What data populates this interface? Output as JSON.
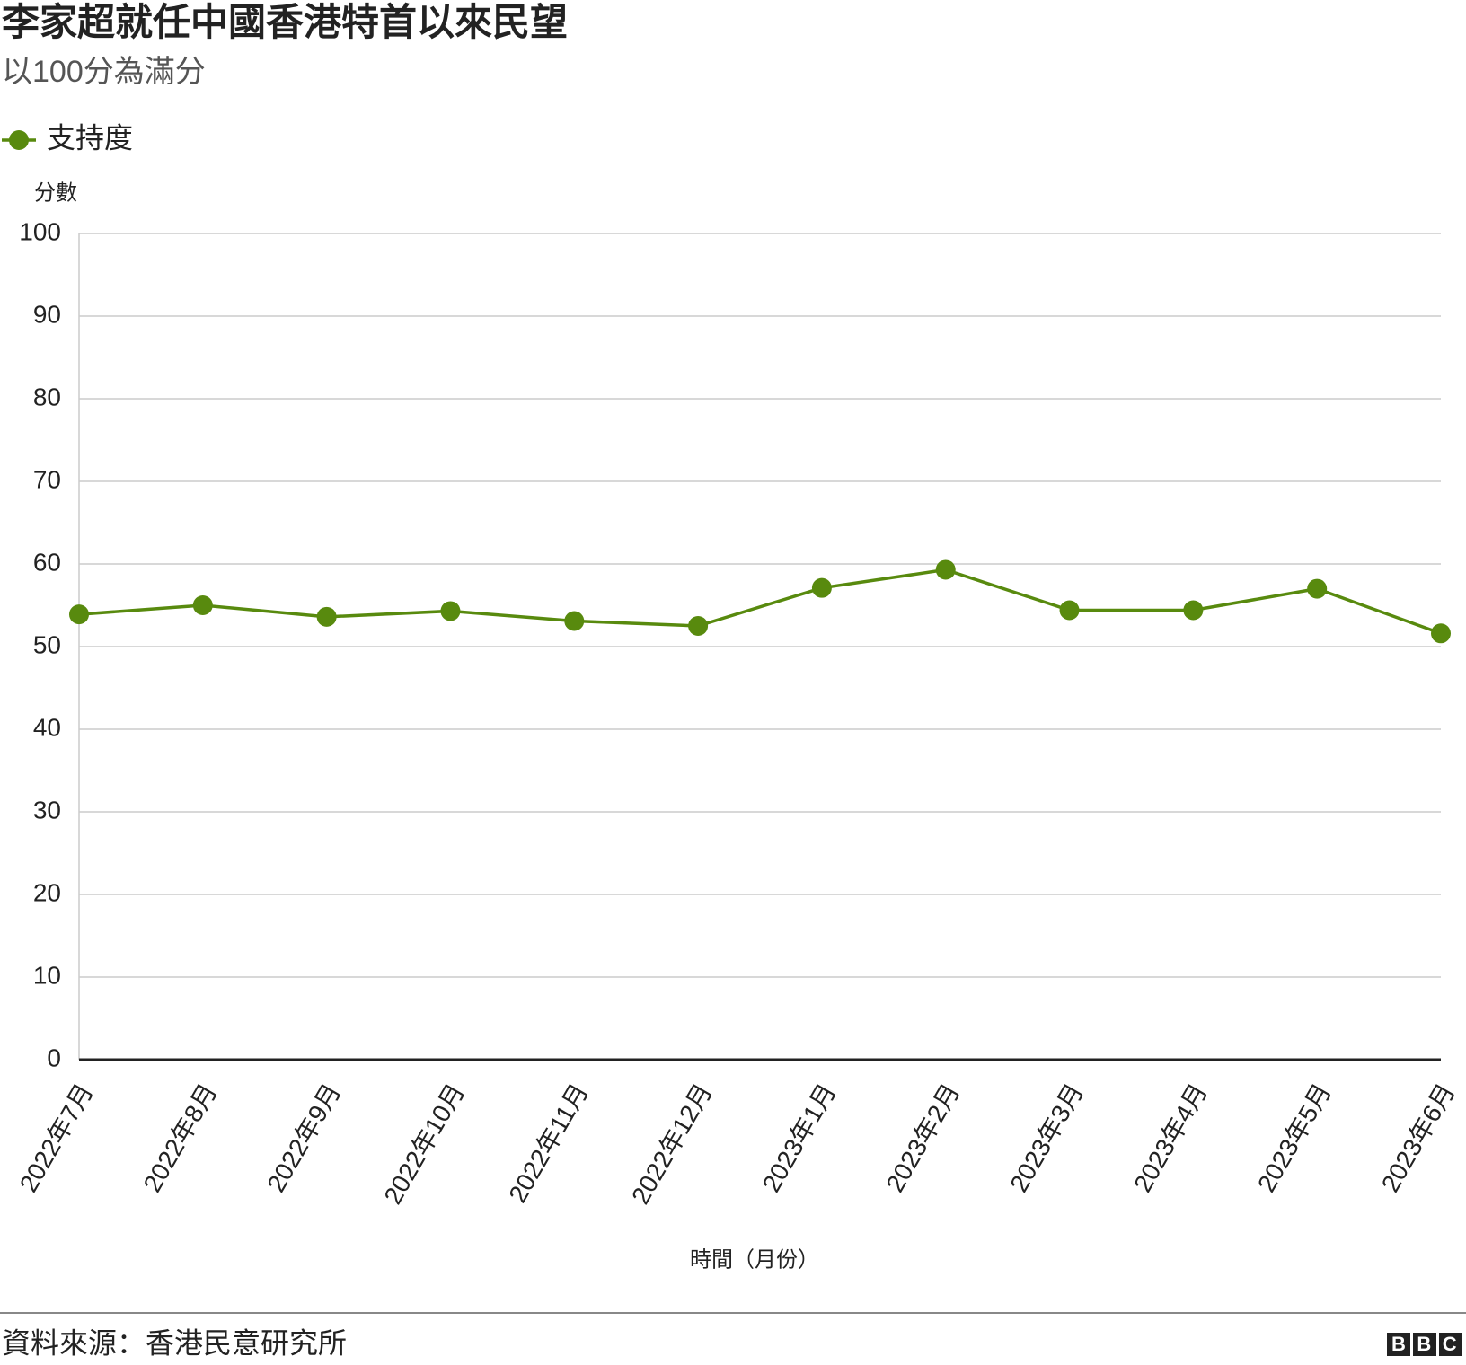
{
  "chart_data": {
    "type": "line",
    "title": "李家超就任中國香港特首以來民望",
    "subtitle": "以100分為滿分",
    "y_label": "分數",
    "x_label": "時間（月份）",
    "source": "資料來源：香港民意研究所",
    "logo": "BBC",
    "categories": [
      "2022年7月",
      "2022年8月",
      "2022年9月",
      "2022年10月",
      "2022年11月",
      "2022年12月",
      "2023年1月",
      "2023年2月",
      "2023年3月",
      "2023年4月",
      "2023年5月",
      "2023年6月"
    ],
    "series": [
      {
        "name": "支持度",
        "color": "#588a0e",
        "values": [
          53.9,
          55.0,
          53.6,
          54.3,
          53.1,
          52.5,
          57.1,
          59.3,
          54.4,
          54.4,
          57.0,
          51.6
        ]
      }
    ],
    "ylim": [
      0,
      100
    ],
    "yticks": [
      0,
      10,
      20,
      30,
      40,
      50,
      60,
      70,
      80,
      90,
      100
    ],
    "grid": true
  }
}
